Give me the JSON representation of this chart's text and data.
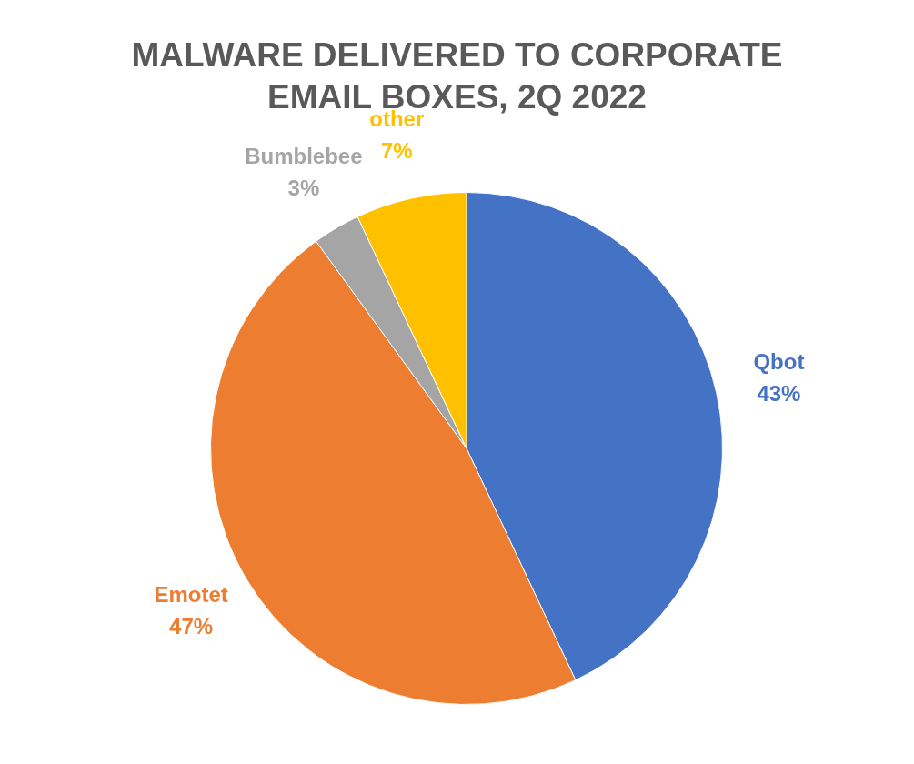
{
  "chart_data": {
    "type": "pie",
    "title": "MALWARE DELIVERED TO CORPORATE EMAIL BOXES, 2Q 2022",
    "categories": [
      "Qbot",
      "Emotet",
      "Bumblebee",
      "other"
    ],
    "values": [
      43,
      47,
      3,
      7
    ],
    "value_labels": [
      "43%",
      "47%",
      "3%",
      "7%"
    ],
    "colors": [
      "#4472c4",
      "#ed7d31",
      "#a5a5a5",
      "#ffc000"
    ]
  }
}
